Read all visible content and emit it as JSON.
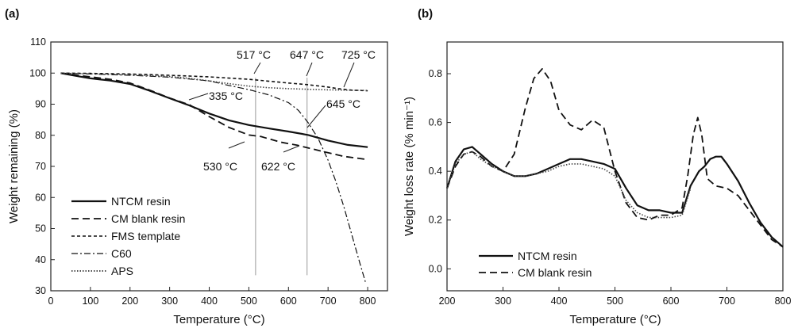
{
  "chart_data": [
    {
      "panel": "(a)",
      "type": "line",
      "xlabel": "Temperature (°C)",
      "ylabel": "Weight remaining (%)",
      "xlim": [
        0,
        850
      ],
      "ylim": [
        30,
        110
      ],
      "xticks": [
        0,
        100,
        200,
        300,
        400,
        500,
        600,
        700,
        800
      ],
      "yticks": [
        30,
        40,
        50,
        60,
        70,
        80,
        90,
        100,
        110
      ],
      "grid": false,
      "legend_position": "bottom-left",
      "series": [
        {
          "name": "NTCM resin",
          "style": "solid",
          "x": [
            25,
            60,
            100,
            150,
            200,
            250,
            300,
            350,
            400,
            450,
            500,
            550,
            600,
            650,
            700,
            750,
            800
          ],
          "y": [
            100,
            99.2,
            98.3,
            97.6,
            96.5,
            94.3,
            91.9,
            89.6,
            87.0,
            84.8,
            83.3,
            82.2,
            81.2,
            80.1,
            78.3,
            76.9,
            76.2
          ]
        },
        {
          "name": "CM blank resin",
          "style": "dashed",
          "x": [
            25,
            60,
            100,
            150,
            200,
            250,
            300,
            350,
            400,
            450,
            500,
            530,
            580,
            622,
            680,
            740,
            800
          ],
          "y": [
            100,
            99.4,
            98.8,
            98.0,
            96.8,
            94.5,
            92.0,
            89.8,
            86.0,
            82.5,
            80.1,
            79.6,
            77.8,
            76.8,
            75.0,
            73.2,
            72.2
          ]
        },
        {
          "name": "FMS template",
          "style": "short-dashed",
          "x": [
            25,
            100,
            200,
            300,
            400,
            500,
            600,
            647,
            700,
            725,
            760,
            800
          ],
          "y": [
            100,
            99.9,
            99.7,
            99.3,
            98.8,
            98.0,
            96.8,
            96.3,
            95.5,
            95.0,
            94.5,
            94.3
          ]
        },
        {
          "name": "C60",
          "style": "dash-dot",
          "x": [
            25,
            100,
            200,
            300,
            400,
            450,
            500,
            550,
            600,
            625,
            650,
            675,
            700,
            720,
            740,
            760,
            780,
            795
          ],
          "y": [
            100,
            99.7,
            99.3,
            98.7,
            97.5,
            96.0,
            94.7,
            93.0,
            90.5,
            88.0,
            84.0,
            79.0,
            72.0,
            65.0,
            57.0,
            48.0,
            39.0,
            32.5
          ]
        },
        {
          "name": "APS",
          "style": "dotted",
          "x": [
            25,
            100,
            200,
            300,
            350,
            400,
            450,
            500,
            550,
            600,
            650,
            700,
            750,
            800
          ],
          "y": [
            100,
            99.8,
            99.5,
            98.9,
            98.3,
            97.5,
            96.6,
            95.8,
            95.3,
            95.0,
            94.8,
            94.6,
            94.5,
            94.4
          ]
        }
      ],
      "annotations": [
        "517 °C",
        "647 °C",
        "725 °C",
        "335 °C",
        "645 °C",
        "530 °C",
        "622 °C"
      ],
      "vertical_markers": [
        517,
        647
      ]
    },
    {
      "panel": "(b)",
      "type": "line",
      "xlabel": "Temperature (°C)",
      "ylabel": "Weight loss rate (% min⁻¹)",
      "xlim": [
        200,
        800
      ],
      "ylim": [
        -0.09,
        0.93
      ],
      "xticks": [
        200,
        300,
        400,
        500,
        600,
        700,
        800
      ],
      "yticks": [
        0.0,
        0.2,
        0.4,
        0.6,
        0.8
      ],
      "grid": false,
      "legend_position": "bottom-left",
      "series": [
        {
          "name": "NTCM resin",
          "style": "solid",
          "x": [
            200,
            215,
            230,
            245,
            260,
            280,
            300,
            320,
            340,
            360,
            380,
            400,
            420,
            440,
            460,
            480,
            500,
            520,
            540,
            560,
            580,
            600,
            620,
            635,
            650,
            660,
            670,
            680,
            690,
            700,
            720,
            740,
            760,
            780,
            800
          ],
          "y": [
            0.33,
            0.44,
            0.49,
            0.5,
            0.47,
            0.43,
            0.4,
            0.38,
            0.38,
            0.39,
            0.41,
            0.43,
            0.45,
            0.45,
            0.44,
            0.43,
            0.41,
            0.33,
            0.26,
            0.24,
            0.24,
            0.23,
            0.23,
            0.34,
            0.4,
            0.42,
            0.45,
            0.46,
            0.46,
            0.43,
            0.36,
            0.27,
            0.19,
            0.13,
            0.09
          ]
        },
        {
          "name": "CM blank resin",
          "style": "dashed",
          "x": [
            200,
            215,
            230,
            245,
            260,
            280,
            300,
            320,
            340,
            355,
            370,
            385,
            400,
            420,
            440,
            460,
            480,
            500,
            520,
            540,
            560,
            580,
            600,
            620,
            630,
            640,
            648,
            655,
            665,
            680,
            700,
            720,
            740,
            760,
            780,
            800
          ],
          "y": [
            0.33,
            0.42,
            0.47,
            0.48,
            0.46,
            0.42,
            0.4,
            0.47,
            0.66,
            0.78,
            0.82,
            0.77,
            0.65,
            0.59,
            0.57,
            0.61,
            0.58,
            0.4,
            0.27,
            0.21,
            0.2,
            0.22,
            0.22,
            0.25,
            0.38,
            0.55,
            0.62,
            0.55,
            0.37,
            0.34,
            0.33,
            0.3,
            0.24,
            0.18,
            0.12,
            0.09
          ]
        },
        {
          "name": "",
          "style": "dotted",
          "x": [
            200,
            215,
            230,
            245,
            260,
            280,
            300,
            320,
            340,
            360,
            380,
            400,
            420,
            440,
            460,
            480,
            500,
            520,
            540,
            560,
            580,
            600,
            620,
            635
          ],
          "y": [
            0.33,
            0.43,
            0.47,
            0.48,
            0.45,
            0.42,
            0.4,
            0.38,
            0.38,
            0.39,
            0.4,
            0.42,
            0.43,
            0.43,
            0.42,
            0.41,
            0.38,
            0.28,
            0.23,
            0.21,
            0.21,
            0.21,
            0.22,
            0.33
          ]
        }
      ]
    }
  ]
}
